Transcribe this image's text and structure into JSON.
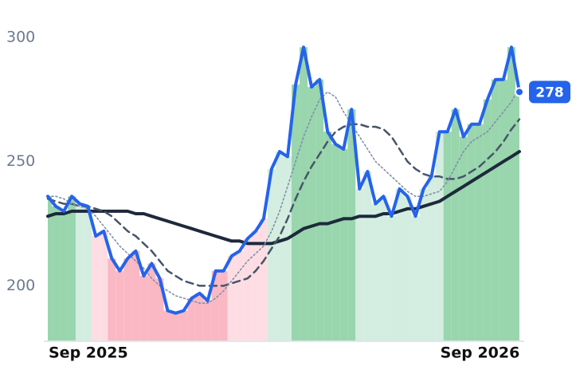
{
  "chart_data": {
    "type": "line",
    "categories": [
      "Sep 2025",
      null,
      null,
      null,
      null,
      null,
      null,
      null,
      null,
      null,
      null,
      null,
      null,
      null,
      null,
      null,
      null,
      null,
      null,
      null,
      null,
      null,
      null,
      null,
      null,
      null,
      null,
      null,
      null,
      null,
      null,
      null,
      null,
      null,
      null,
      null,
      null,
      null,
      null,
      null,
      null,
      null,
      null,
      null,
      null,
      null,
      null,
      null,
      null,
      "Sep 2026",
      null,
      null,
      null,
      null,
      null,
      null,
      null,
      null,
      null,
      null
    ],
    "series": [
      {
        "color": "#1e293b",
        "style": "solid",
        "width": 4,
        "values": [
          228,
          229,
          229,
          230,
          230,
          230,
          230,
          230,
          230,
          230,
          230,
          229,
          229,
          228,
          227,
          226,
          225,
          224,
          223,
          222,
          221,
          220,
          219,
          218,
          218,
          217,
          217,
          217,
          217,
          218,
          219,
          221,
          223,
          224,
          225,
          225,
          226,
          227,
          227,
          228,
          228,
          228,
          229,
          229,
          230,
          231,
          231,
          232,
          233,
          234,
          236,
          238,
          240,
          242,
          244,
          246,
          248,
          250,
          252,
          254
        ]
      },
      {
        "color": "#475569",
        "style": "dashed",
        "width": 2.5,
        "values": [
          235,
          234,
          233,
          233,
          232,
          232,
          231,
          230,
          228,
          225,
          222,
          220,
          217,
          214,
          210,
          206,
          204,
          202,
          201,
          200,
          200,
          200,
          200,
          201,
          202,
          203,
          206,
          210,
          215,
          220,
          227,
          235,
          242,
          248,
          253,
          258,
          262,
          264,
          265,
          265,
          264,
          264,
          263,
          260,
          255,
          250,
          247,
          245,
          244,
          244,
          243,
          243,
          244,
          246,
          248,
          251,
          254,
          258,
          263,
          267
        ]
      },
      {
        "color": "#8090a8",
        "style": "dotted",
        "width": 1.6,
        "values": [
          236,
          236,
          235,
          233,
          232,
          231,
          228,
          224,
          220,
          216,
          213,
          210,
          207,
          203,
          200,
          198,
          196,
          195,
          194,
          193,
          193,
          195,
          198,
          202,
          206,
          210,
          213,
          216,
          222,
          230,
          240,
          250,
          260,
          268,
          275,
          278,
          276,
          270,
          265,
          260,
          255,
          250,
          247,
          244,
          241,
          238,
          236,
          236,
          237,
          238,
          242,
          248,
          254,
          258,
          260,
          262,
          266,
          270,
          274,
          280
        ]
      },
      {
        "color": "#2563eb",
        "style": "solid",
        "width": 4,
        "values": [
          236,
          232,
          230,
          236,
          233,
          232,
          220,
          222,
          211,
          206,
          211,
          214,
          204,
          209,
          203,
          190,
          189,
          190,
          195,
          197,
          194,
          206,
          206,
          212,
          214,
          219,
          222,
          227,
          247,
          254,
          252,
          281,
          296,
          280,
          283,
          262,
          257,
          255,
          271,
          239,
          246,
          233,
          236,
          228,
          239,
          236,
          228,
          239,
          244,
          262,
          262,
          271,
          260,
          265,
          265,
          275,
          283,
          283,
          296,
          278
        ]
      }
    ],
    "zones": [
      {
        "from": 0,
        "to": 3,
        "color": "#99d5ad"
      },
      {
        "from": 4,
        "to": 5,
        "color": "#d3ede0"
      },
      {
        "from": 6,
        "to": 7,
        "color": "#fddde3"
      },
      {
        "from": 8,
        "to": 22,
        "color": "#f9b8c4"
      },
      {
        "from": 23,
        "to": 27,
        "color": "#fddde3"
      },
      {
        "from": 28,
        "to": 30,
        "color": "#d3ede0"
      },
      {
        "from": 31,
        "to": 38,
        "color": "#99d5ad"
      },
      {
        "from": 39,
        "to": 49,
        "color": "#d3ede0"
      },
      {
        "from": 50,
        "to": 59,
        "color": "#99d5ad"
      }
    ],
    "ylim": [
      178,
      315
    ],
    "yticks": [
      200,
      250,
      300
    ],
    "grid": false
  }
}
